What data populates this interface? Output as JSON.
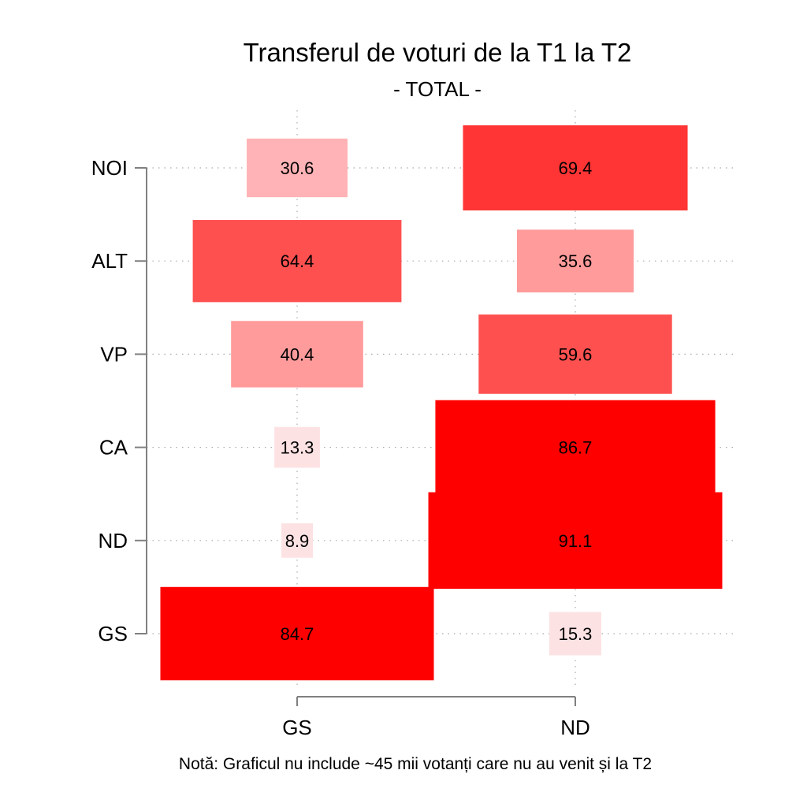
{
  "chart_data": {
    "type": "heatmap",
    "title": "Transferul de voturi de la T1 la T2",
    "subtitle": "- TOTAL -",
    "note": "Notă: Graficul nu include ~45 mii votanți care nu au venit și la T2",
    "rows": [
      "NOI",
      "ALT",
      "VP",
      "CA",
      "ND",
      "GS"
    ],
    "columns": [
      "GS",
      "ND"
    ],
    "values": [
      [
        30.6,
        69.4
      ],
      [
        64.4,
        35.6
      ],
      [
        40.4,
        59.6
      ],
      [
        13.3,
        86.7
      ],
      [
        8.9,
        91.1
      ],
      [
        84.7,
        15.3
      ]
    ],
    "value_labels": [
      [
        "30.6",
        "69.4"
      ],
      [
        "64.4",
        "35.6"
      ],
      [
        "40.4",
        "59.6"
      ],
      [
        "13.3",
        "86.7"
      ],
      [
        "8.9",
        "91.1"
      ],
      [
        "84.7",
        "15.3"
      ]
    ],
    "colors": {
      "low": "#fde2e4",
      "mid_low": "#ff9b9b",
      "mid": "#ff5050",
      "mid_high": "#ff3535",
      "high": "#ff0000",
      "axis": "#808080",
      "grid": "#aaaaaa"
    },
    "grid": true
  }
}
